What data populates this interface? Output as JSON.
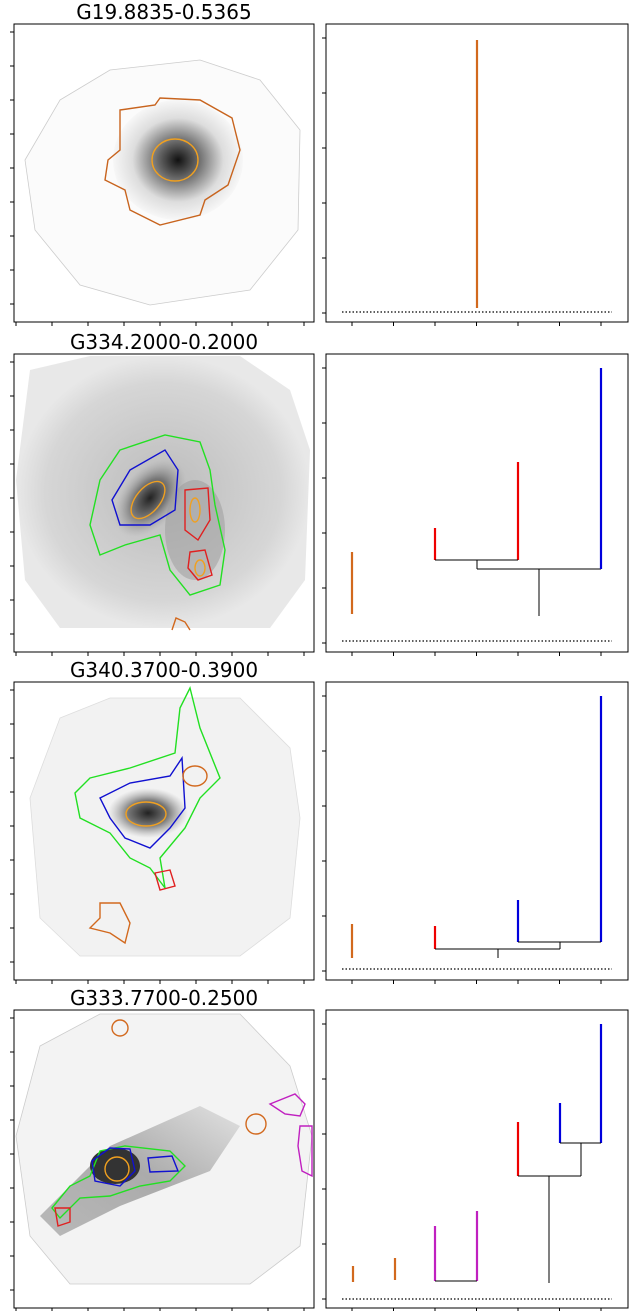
{
  "panels": [
    {
      "title": "G19.8835-0.5365"
    },
    {
      "title": "G334.2000-0.2000"
    },
    {
      "title": "G340.3700-0.3900"
    },
    {
      "title": "G333.7700-0.2500"
    }
  ]
}
